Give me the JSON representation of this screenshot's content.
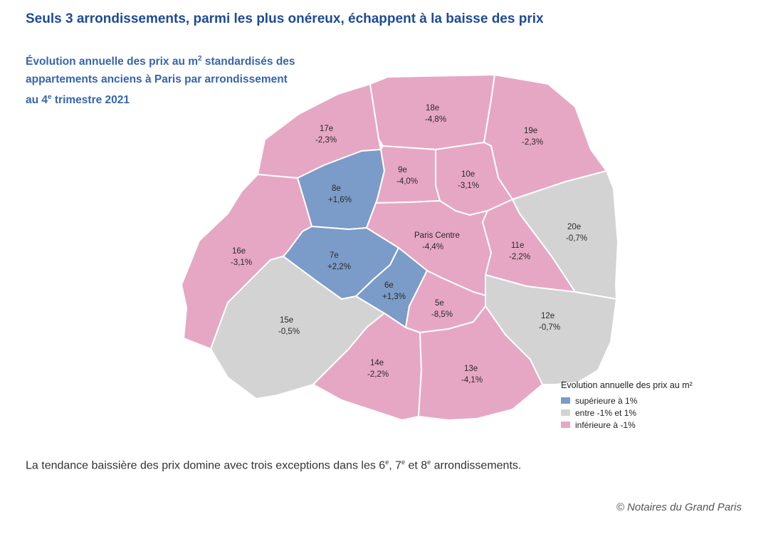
{
  "headline": "Seuls 3 arrondissements, parmi les plus onéreux, échappent à la baisse des prix",
  "subtitle": {
    "line1_a": "Évolution annuelle des prix au m",
    "line1_sup": "2",
    "line1_b": " standardisés des",
    "line2": "appartements anciens à Paris par arrondissement",
    "line3_a": "au 4",
    "line3_sup": "e",
    "line3_b": " trimestre 2021"
  },
  "colors": {
    "up": "#7b9bc8",
    "flat": "#d3d3d3",
    "down": "#e6a7c4"
  },
  "arrondissements": [
    {
      "id": "17e",
      "value": "-2,3%",
      "category": "down"
    },
    {
      "id": "18e",
      "value": "-4,8%",
      "category": "down"
    },
    {
      "id": "19e",
      "value": "-2,3%",
      "category": "down"
    },
    {
      "id": "8e",
      "value": "+1,6%",
      "category": "up"
    },
    {
      "id": "9e",
      "value": "-4,0%",
      "category": "down"
    },
    {
      "id": "10e",
      "value": "-3,1%",
      "category": "down"
    },
    {
      "id": "16e",
      "value": "-3,1%",
      "category": "down"
    },
    {
      "id": "7e",
      "value": "+2,2%",
      "category": "up"
    },
    {
      "id": "Paris Centre",
      "value": "-4,4%",
      "category": "down"
    },
    {
      "id": "11e",
      "value": "-2,2%",
      "category": "down"
    },
    {
      "id": "20e",
      "value": "-0,7%",
      "category": "flat"
    },
    {
      "id": "6e",
      "value": "+1,3%",
      "category": "up"
    },
    {
      "id": "5e",
      "value": "-8,5%",
      "category": "down"
    },
    {
      "id": "15e",
      "value": "-0,5%",
      "category": "flat"
    },
    {
      "id": "12e",
      "value": "-0,7%",
      "category": "flat"
    },
    {
      "id": "14e",
      "value": "-2,2%",
      "category": "down"
    },
    {
      "id": "13e",
      "value": "-4,1%",
      "category": "down"
    }
  ],
  "legend": {
    "title": "Evolution annuelle des prix au m²",
    "items": [
      {
        "label": "supérieure à 1%",
        "category": "up"
      },
      {
        "label": "entre -1% et 1%",
        "category": "flat"
      },
      {
        "label": "inférieure à -1%",
        "category": "down"
      }
    ]
  },
  "caption": {
    "a": "La tendance baissière des prix domine avec trois exceptions dans les 6",
    "s1": "e",
    "b": ", 7",
    "s2": "e",
    "c": " et 8",
    "s3": "e",
    "d": " arrondissements."
  },
  "credit": "© Notaires du Grand Paris"
}
